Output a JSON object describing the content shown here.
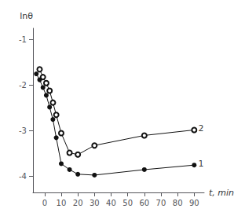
{
  "chart_data": {
    "type": "line",
    "xlabel": "t, min",
    "ylabel": "lnθ",
    "series": [
      {
        "x": [
          -5,
          -3,
          -1,
          1,
          3,
          5,
          7,
          10,
          15,
          20,
          30,
          60,
          90
        ],
        "values": [
          -1.75,
          -1.88,
          -2.05,
          -2.22,
          -2.48,
          -2.75,
          -3.15,
          -3.72,
          -3.85,
          -3.95,
          -3.97,
          -3.85,
          -3.75
        ],
        "color": "#111111",
        "marker": "circle"
      },
      {
        "x": [
          -3,
          -1,
          1,
          3,
          5,
          7,
          10,
          15,
          20,
          30,
          60,
          90
        ],
        "values": [
          -1.65,
          -1.82,
          -1.95,
          -2.12,
          -2.38,
          -2.65,
          -3.05,
          -3.48,
          -3.52,
          -3.32,
          -3.1,
          -2.98
        ],
        "color": "#111111",
        "marker": "emptyCircle"
      }
    ],
    "annotations": [
      {
        "text": "1",
        "x": 91.5,
        "y": -3.72
      },
      {
        "text": "2",
        "x": 91.5,
        "y": -2.95
      }
    ],
    "xlim": [
      -7,
      96
    ],
    "xticks": [
      0,
      10,
      20,
      30,
      40,
      50,
      60,
      70,
      80,
      90
    ],
    "ylim": [
      -4.35,
      -0.75
    ],
    "yticks": [
      -1,
      -2,
      -3,
      -4
    ],
    "grid": false
  }
}
